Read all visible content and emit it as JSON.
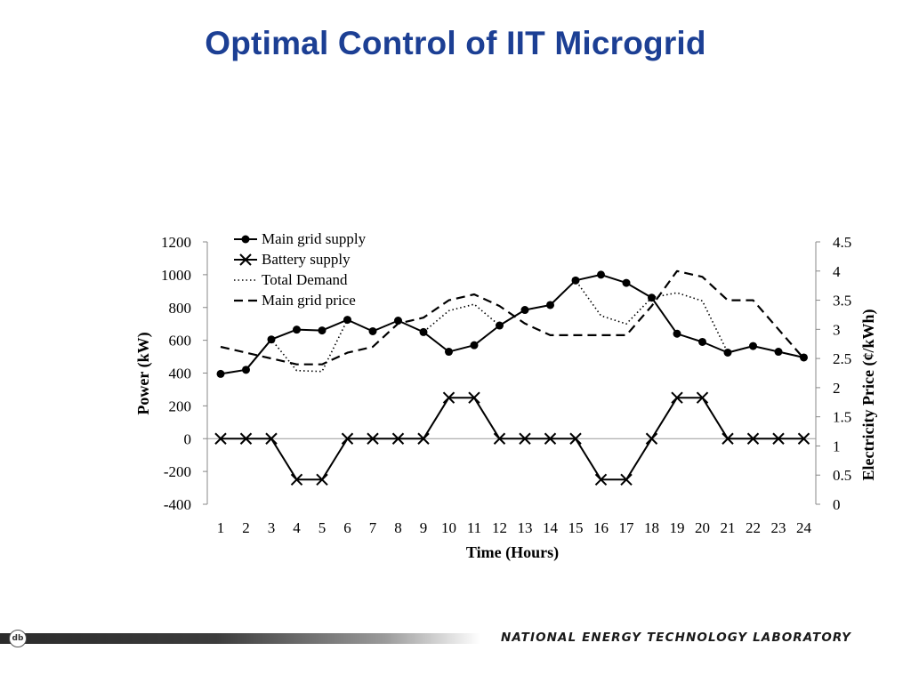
{
  "slide": {
    "title": "Optimal Control of IIT Microgrid",
    "footer_lab": "NATIONAL ENERGY TECHNOLOGY LABORATORY",
    "footer_logo_icon": "netl-logo-icon"
  },
  "chart_data": {
    "type": "line",
    "title": "",
    "xlabel": "Time (Hours)",
    "ylabel": "Power (kW)",
    "y2label": "Electricity Price (¢/kWh)",
    "categories": [
      "1",
      "2",
      "3",
      "4",
      "5",
      "6",
      "7",
      "8",
      "9",
      "10",
      "11",
      "12",
      "13",
      "14",
      "15",
      "16",
      "17",
      "18",
      "19",
      "20",
      "21",
      "22",
      "23",
      "24"
    ],
    "ylim": [
      -400,
      1200
    ],
    "yticks": [
      "1200",
      "1000",
      "800",
      "600",
      "400",
      "200",
      "0",
      "-200",
      "-400"
    ],
    "y2lim": [
      0,
      4.5
    ],
    "y2ticks": [
      "4.5",
      "4",
      "3.5",
      "3",
      "2.5",
      "2",
      "1.5",
      "1",
      "0.5",
      "0"
    ],
    "grid": false,
    "legend_position": "top-left",
    "series": [
      {
        "name": "Main grid supply",
        "axis": "left",
        "style": "solid-circle",
        "values": [
          395,
          420,
          605,
          665,
          660,
          725,
          655,
          720,
          650,
          530,
          570,
          690,
          785,
          815,
          965,
          1000,
          950,
          860,
          640,
          590,
          525,
          565,
          530,
          495
        ]
      },
      {
        "name": "Battery supply",
        "axis": "left",
        "style": "solid-x",
        "values": [
          0,
          0,
          0,
          -250,
          -250,
          0,
          0,
          0,
          0,
          250,
          250,
          0,
          0,
          0,
          0,
          -250,
          -250,
          0,
          250,
          250,
          0,
          0,
          0,
          0
        ]
      },
      {
        "name": "Total Demand",
        "axis": "left",
        "style": "dotted",
        "values": [
          395,
          420,
          605,
          415,
          410,
          725,
          655,
          720,
          650,
          780,
          820,
          690,
          785,
          815,
          965,
          750,
          700,
          860,
          890,
          840,
          525,
          565,
          530,
          495
        ]
      },
      {
        "name": "Main grid price",
        "axis": "right",
        "style": "dashed",
        "values": [
          2.7,
          2.6,
          2.5,
          2.4,
          2.4,
          2.6,
          2.7,
          3.1,
          3.2,
          3.5,
          3.6,
          3.4,
          3.1,
          2.9,
          2.9,
          2.9,
          2.9,
          3.4,
          4.0,
          3.9,
          3.5,
          3.5,
          3.0,
          2.5
        ]
      }
    ]
  }
}
